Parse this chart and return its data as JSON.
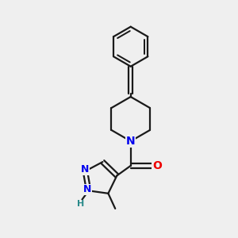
{
  "bg_color": "#efefef",
  "line_color": "#1a1a1a",
  "bond_width": 1.6,
  "N_color": "#0000ee",
  "O_color": "#ee0000",
  "H_color": "#2a8a8a",
  "figsize": [
    3.0,
    3.0
  ],
  "dpi": 100,
  "xlim": [
    0,
    10
  ],
  "ylim": [
    0,
    10
  ]
}
